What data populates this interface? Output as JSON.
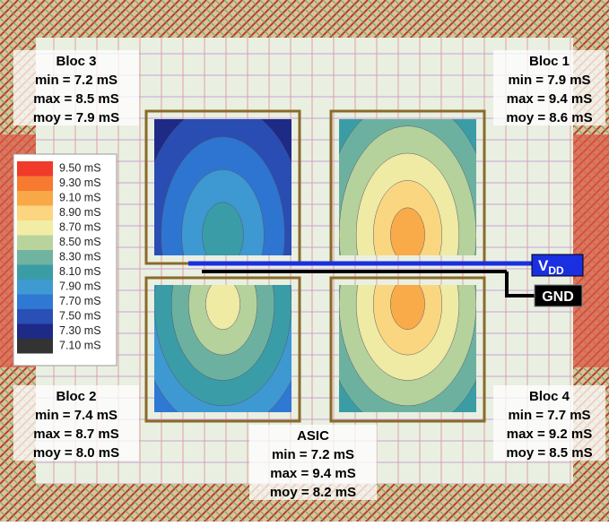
{
  "blocs": [
    {
      "title": "Bloc 3",
      "min": "min = 7.2 mS",
      "max": "max = 8.5 mS",
      "moy": "moy = 7.9 mS"
    },
    {
      "title": "Bloc 1",
      "min": "min = 7.9 mS",
      "max": "max = 9.4 mS",
      "moy": "moy = 8.6 mS"
    },
    {
      "title": "Bloc 2",
      "min": "min = 7.4 mS",
      "max": "max = 8.7 mS",
      "moy": "moy = 8.0 mS"
    },
    {
      "title": "Bloc 4",
      "min": "min = 7.7 mS",
      "max": "max = 9.2 mS",
      "moy": "moy = 8.5 mS"
    }
  ],
  "asic": {
    "title": "ASIC",
    "min": "min = 7.2 mS",
    "max": "max = 9.4 mS",
    "moy": "moy = 8.2 mS"
  },
  "legend": [
    {
      "label": "9.50 mS",
      "color": "#f03a2a"
    },
    {
      "label": "9.30 mS",
      "color": "#f77a30"
    },
    {
      "label": "9.10 mS",
      "color": "#f9a847"
    },
    {
      "label": "8.90 mS",
      "color": "#fbd580"
    },
    {
      "label": "8.70 mS",
      "color": "#f3eca5"
    },
    {
      "label": "8.50 mS",
      "color": "#b9d39c"
    },
    {
      "label": "8.30 mS",
      "color": "#6fb3a0"
    },
    {
      "label": "8.10 mS",
      "color": "#3a9da5"
    },
    {
      "label": "7.90 mS",
      "color": "#3f9ad2"
    },
    {
      "label": "7.70 mS",
      "color": "#2f78d3"
    },
    {
      "label": "7.50 mS",
      "color": "#2a4fb5"
    },
    {
      "label": "7.30 mS",
      "color": "#1d2a86"
    },
    {
      "label": "7.10 mS",
      "color": "#333333"
    }
  ],
  "supply": {
    "vdd_main": "V",
    "vdd_sub": "DD",
    "gnd": "GND"
  }
}
